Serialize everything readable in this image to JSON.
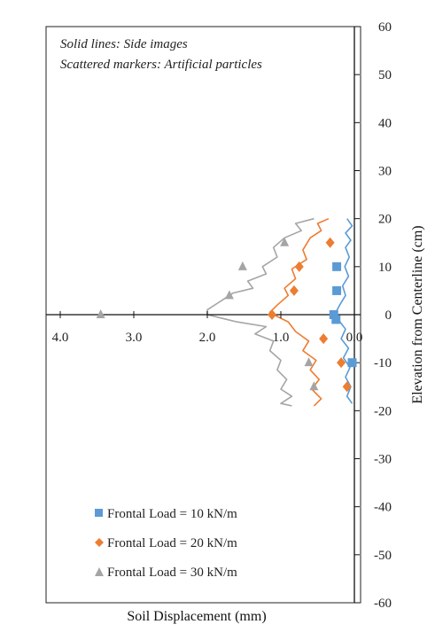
{
  "chart_data": {
    "type": "scatter",
    "xlabel": "Soil Displacement (mm)",
    "ylabel": "Elevation from Centerline (cm)",
    "xlim": [
      0.0,
      4.0
    ],
    "x_reversed": true,
    "ylim": [
      -60,
      60
    ],
    "x_ticks": [
      4.0,
      3.0,
      2.0,
      1.0,
      0.0
    ],
    "x_tick_labels": [
      "4.0",
      "3.0",
      "2.0",
      "1.0",
      "0.0"
    ],
    "y_ticks": [
      60,
      50,
      40,
      30,
      20,
      10,
      0,
      -10,
      -20,
      -30,
      -40,
      -50,
      -60
    ],
    "y_tick_labels": [
      "60",
      "50",
      "40",
      "30",
      "20",
      "10",
      "0",
      "-10",
      "-20",
      "-30",
      "-40",
      "-50",
      "-60"
    ],
    "y_axis_side": "right",
    "grid": false,
    "legend_position": "bottom-left",
    "annotations": [
      "Solid lines: Side images",
      "Scattered markers: Artificial particles"
    ],
    "series": [
      {
        "name": "Frontal Load = 10 kN/m",
        "color": "#5b9bd5",
        "marker": "square",
        "markers": [
          {
            "x": 0.24,
            "y": 10
          },
          {
            "x": 0.24,
            "y": 5
          },
          {
            "x": 0.28,
            "y": 0
          },
          {
            "x": 0.25,
            "y": -1
          },
          {
            "x": 0.03,
            "y": -10
          }
        ],
        "line": [
          {
            "x": 0.1,
            "y": 20
          },
          {
            "x": 0.03,
            "y": 18.5
          },
          {
            "x": 0.12,
            "y": 17
          },
          {
            "x": 0.05,
            "y": 15.5
          },
          {
            "x": 0.12,
            "y": 14
          },
          {
            "x": 0.07,
            "y": 12
          },
          {
            "x": 0.13,
            "y": 10
          },
          {
            "x": 0.08,
            "y": 8
          },
          {
            "x": 0.16,
            "y": 6
          },
          {
            "x": 0.12,
            "y": 4
          },
          {
            "x": 0.2,
            "y": 2
          },
          {
            "x": 0.27,
            "y": 0
          },
          {
            "x": 0.22,
            "y": -1
          },
          {
            "x": 0.12,
            "y": -3
          },
          {
            "x": 0.18,
            "y": -5
          },
          {
            "x": 0.08,
            "y": -7
          },
          {
            "x": 0.15,
            "y": -9
          },
          {
            "x": 0.06,
            "y": -11
          },
          {
            "x": 0.12,
            "y": -13
          },
          {
            "x": 0.05,
            "y": -15
          },
          {
            "x": 0.1,
            "y": -17
          },
          {
            "x": 0.03,
            "y": -18.5
          }
        ]
      },
      {
        "name": "Frontal Load = 20 kN/m",
        "color": "#ed7d31",
        "marker": "diamond",
        "markers": [
          {
            "x": 0.33,
            "y": 15
          },
          {
            "x": 0.75,
            "y": 10
          },
          {
            "x": 0.82,
            "y": 5
          },
          {
            "x": 1.12,
            "y": 0
          },
          {
            "x": 0.42,
            "y": -5
          },
          {
            "x": 0.18,
            "y": -10
          },
          {
            "x": 0.1,
            "y": -15
          }
        ],
        "line": [
          {
            "x": 0.35,
            "y": 20
          },
          {
            "x": 0.5,
            "y": 19
          },
          {
            "x": 0.45,
            "y": 17.5
          },
          {
            "x": 0.6,
            "y": 16
          },
          {
            "x": 0.7,
            "y": 13.5
          },
          {
            "x": 0.65,
            "y": 11.5
          },
          {
            "x": 0.85,
            "y": 9.5
          },
          {
            "x": 0.8,
            "y": 7.5
          },
          {
            "x": 0.95,
            "y": 5.5
          },
          {
            "x": 0.9,
            "y": 4
          },
          {
            "x": 1.05,
            "y": 2
          },
          {
            "x": 1.15,
            "y": 0.5
          },
          {
            "x": 1.1,
            "y": 0
          },
          {
            "x": 0.9,
            "y": -1.5
          },
          {
            "x": 0.8,
            "y": -3.5
          },
          {
            "x": 0.62,
            "y": -5.5
          },
          {
            "x": 0.7,
            "y": -7.5
          },
          {
            "x": 0.52,
            "y": -9.5
          },
          {
            "x": 0.6,
            "y": -11.5
          },
          {
            "x": 0.48,
            "y": -13.5
          },
          {
            "x": 0.58,
            "y": -15.5
          },
          {
            "x": 0.45,
            "y": -17.5
          },
          {
            "x": 0.55,
            "y": -19
          }
        ]
      },
      {
        "name": "Frontal Load = 30 kN/m",
        "color": "#a5a5a5",
        "marker": "triangle",
        "markers": [
          {
            "x": 0.95,
            "y": 15
          },
          {
            "x": 1.52,
            "y": 10
          },
          {
            "x": 1.7,
            "y": 4
          },
          {
            "x": 3.45,
            "y": 0
          },
          {
            "x": 0.62,
            "y": -10
          },
          {
            "x": 0.55,
            "y": -15
          }
        ],
        "line": [
          {
            "x": 0.55,
            "y": 20
          },
          {
            "x": 0.8,
            "y": 19
          },
          {
            "x": 0.72,
            "y": 17.5
          },
          {
            "x": 0.95,
            "y": 16
          },
          {
            "x": 1.1,
            "y": 14
          },
          {
            "x": 1.05,
            "y": 12
          },
          {
            "x": 1.25,
            "y": 10
          },
          {
            "x": 1.2,
            "y": 8.5
          },
          {
            "x": 1.45,
            "y": 7
          },
          {
            "x": 1.38,
            "y": 5.5
          },
          {
            "x": 1.65,
            "y": 4.5
          },
          {
            "x": 1.85,
            "y": 2.5
          },
          {
            "x": 2.0,
            "y": 1
          },
          {
            "x": 2.0,
            "y": 0
          },
          {
            "x": 1.6,
            "y": -1.5
          },
          {
            "x": 1.2,
            "y": -2.5
          },
          {
            "x": 1.35,
            "y": -4
          },
          {
            "x": 1.1,
            "y": -5.5
          },
          {
            "x": 1.15,
            "y": -7.5
          },
          {
            "x": 1.0,
            "y": -9.5
          },
          {
            "x": 1.05,
            "y": -11.5
          },
          {
            "x": 0.92,
            "y": -13.5
          },
          {
            "x": 1.0,
            "y": -15.5
          },
          {
            "x": 0.85,
            "y": -17
          },
          {
            "x": 1.0,
            "y": -18.5
          },
          {
            "x": 0.85,
            "y": -19
          }
        ]
      }
    ]
  }
}
